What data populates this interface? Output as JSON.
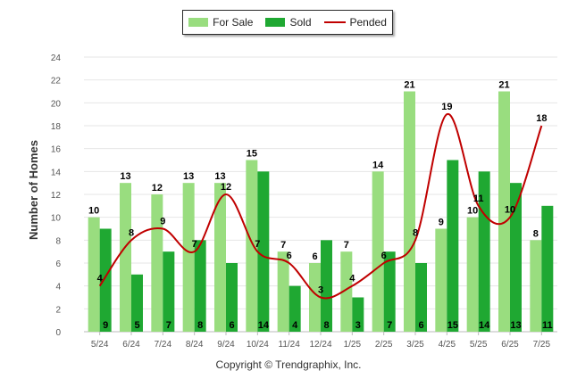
{
  "chart_data": {
    "type": "bar",
    "categories": [
      "5/24",
      "6/24",
      "7/24",
      "8/24",
      "9/24",
      "10/24",
      "11/24",
      "12/24",
      "1/25",
      "2/25",
      "3/25",
      "4/25",
      "5/25",
      "6/25",
      "7/25"
    ],
    "series": [
      {
        "name": "For Sale",
        "type": "bar",
        "color": "#99dd7f",
        "values": [
          10,
          13,
          12,
          13,
          13,
          15,
          7,
          6,
          7,
          14,
          21,
          9,
          10,
          21,
          8
        ]
      },
      {
        "name": "Sold",
        "type": "bar",
        "color": "#1fa832",
        "values": [
          9,
          5,
          7,
          8,
          6,
          14,
          4,
          8,
          3,
          7,
          6,
          15,
          14,
          13,
          11
        ]
      },
      {
        "name": "Pended",
        "type": "line",
        "color": "#c00000",
        "values": [
          4,
          8,
          9,
          7,
          12,
          7,
          6,
          3,
          4,
          6,
          8,
          19,
          11,
          10,
          18
        ]
      }
    ],
    "ylabel": "Number of Homes",
    "ylim": [
      0,
      24
    ],
    "yticks": [
      0,
      2,
      4,
      6,
      8,
      10,
      12,
      14,
      16,
      18,
      20,
      22,
      24
    ],
    "grid": true,
    "legend_position": "top-center"
  },
  "copyright": "Copyright © Trendgraphix, Inc."
}
